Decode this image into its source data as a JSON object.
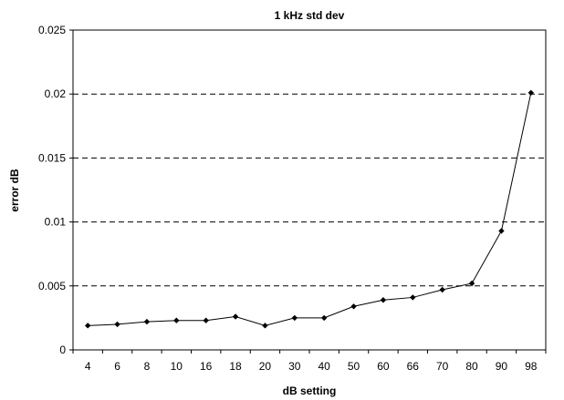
{
  "chart_data": {
    "type": "line",
    "title": "1 kHz std dev",
    "xlabel": "dB setting",
    "ylabel": "error dB",
    "categories": [
      "4",
      "6",
      "8",
      "10",
      "16",
      "18",
      "20",
      "30",
      "40",
      "50",
      "60",
      "66",
      "70",
      "80",
      "90",
      "98"
    ],
    "series": [
      {
        "values": [
          0.0019,
          0.002,
          0.0022,
          0.0023,
          0.0023,
          0.0026,
          0.0019,
          0.0025,
          0.0025,
          0.0034,
          0.0039,
          0.0041,
          0.0047,
          0.0052,
          0.0093,
          0.0201
        ]
      }
    ],
    "ylim": [
      0,
      0.025
    ],
    "yticks": [
      "0",
      "0.005",
      "0.01",
      "0.015",
      "0.02",
      "0.025"
    ],
    "grid": "horizontal-dashed",
    "legend": "none",
    "line_color": "#000000",
    "marker": "diamond"
  }
}
